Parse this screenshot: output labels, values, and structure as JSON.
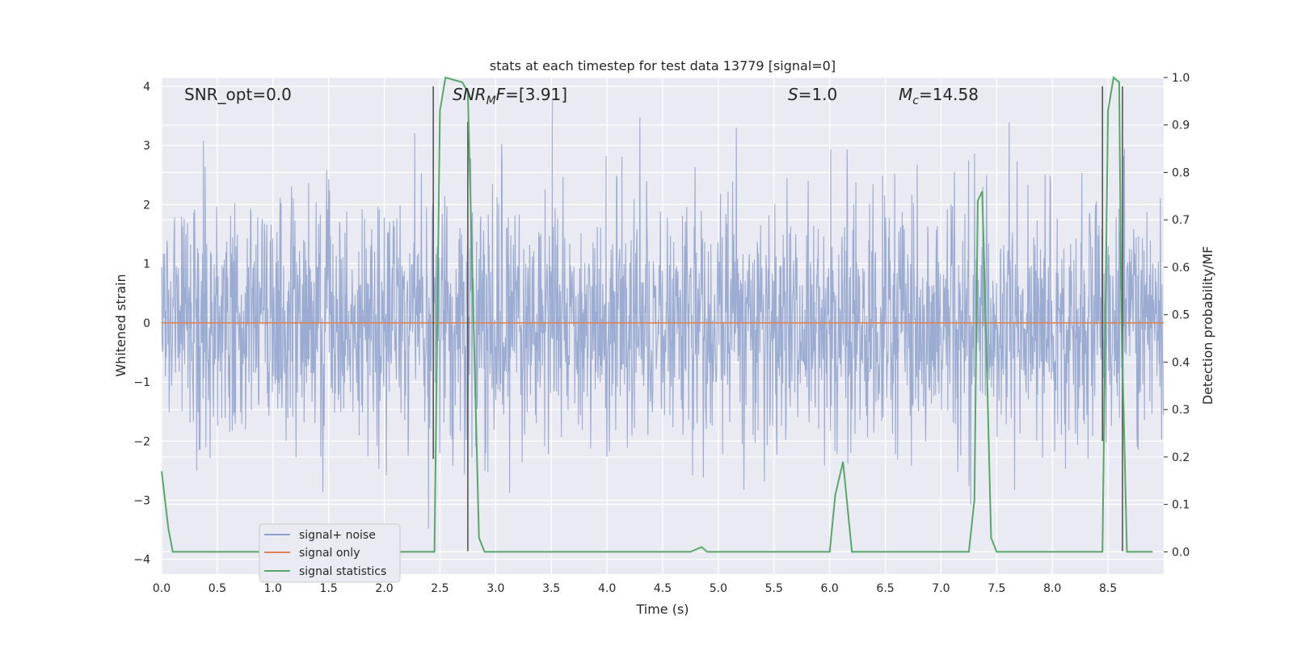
{
  "chart_data": {
    "type": "line",
    "title": "stats at each timestep for test data 13779 [signal=0]",
    "xlabel": "Time (s)",
    "ylabel": "Whitened strain",
    "ylabel_right": "Detection probability/MF",
    "xlim": [
      0.0,
      9.0
    ],
    "ylim": [
      -4.25,
      4.15
    ],
    "ylim_right": [
      -0.047,
      1.0
    ],
    "x_ticks": [
      "0.0",
      "0.5",
      "1.0",
      "1.5",
      "2.0",
      "2.5",
      "3.0",
      "3.5",
      "4.0",
      "4.5",
      "5.0",
      "5.5",
      "6.0",
      "6.5",
      "7.0",
      "7.5",
      "8.0",
      "8.5"
    ],
    "y_ticks": [
      "4",
      "3",
      "2",
      "1",
      "0",
      "−1",
      "−2",
      "−3",
      "−4"
    ],
    "y_ticks_right": [
      "1.0",
      "0.9",
      "0.8",
      "0.7",
      "0.6",
      "0.5",
      "0.4",
      "0.3",
      "0.2",
      "0.1",
      "0.0"
    ],
    "grid": true,
    "legend_position": "lower-left",
    "annotations": {
      "snr_opt": "SNR_opt=0.0",
      "snr_mf_sym": "SNR",
      "snr_mf_sub": "M",
      "snr_mf_sym2": "F",
      "snr_mf_val": "=[3.91]",
      "s_sym": "S",
      "s_val": "=1.0",
      "mc_sym": "M",
      "mc_sub": "c",
      "mc_val": "=14.58"
    },
    "series": [
      {
        "name": "signal+ noise",
        "color": "#8da0cb",
        "note": "whitened strain noise, amplitude ~ ±3.7"
      },
      {
        "name": "signal only",
        "color": "#dd8452",
        "values_constant": 0.0
      },
      {
        "name": "signal statistics",
        "color": "#55a868",
        "axis": "right",
        "x": [
          0.0,
          0.06,
          0.1,
          0.2,
          2.4,
          2.45,
          2.5,
          2.55,
          2.7,
          2.75,
          2.8,
          2.85,
          2.9,
          2.95,
          3.0,
          4.75,
          4.85,
          4.9,
          5.0,
          5.95,
          6.0,
          6.05,
          6.12,
          6.2,
          6.25,
          7.25,
          7.3,
          7.33,
          7.37,
          7.4,
          7.45,
          7.5,
          8.45,
          8.5,
          8.55,
          8.6,
          8.62,
          8.67,
          8.75,
          8.9
        ],
        "y": [
          0.17,
          0.05,
          0.0,
          0.0,
          0.0,
          0.0,
          0.93,
          1.0,
          0.99,
          0.97,
          0.5,
          0.03,
          0.0,
          0.0,
          0.0,
          0.0,
          0.01,
          0.0,
          0.0,
          0.0,
          0.0,
          0.12,
          0.19,
          0.0,
          0.0,
          0.0,
          0.11,
          0.74,
          0.76,
          0.5,
          0.03,
          0.0,
          0.0,
          0.93,
          1.0,
          0.99,
          0.5,
          0.0,
          0.0,
          0.0
        ]
      }
    ],
    "vertical_markers": [
      {
        "x": 2.44,
        "y_top": 4.0,
        "y_bottom": -2.3
      },
      {
        "x": 2.75,
        "y_top": 3.4,
        "y_bottom": -3.86
      },
      {
        "x": 8.45,
        "y_top": 4.0,
        "y_bottom": -2.0
      },
      {
        "x": 8.63,
        "y_top": 4.0,
        "y_bottom": -3.86
      }
    ]
  }
}
